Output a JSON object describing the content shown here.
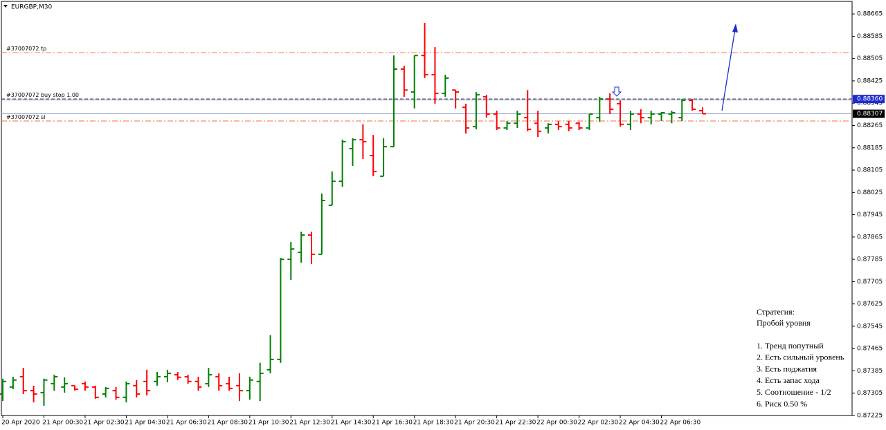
{
  "chart_data": {
    "type": "ohlc",
    "title": "EURGBP,M30",
    "categories": [
      "20 Apr 2020",
      null,
      null,
      null,
      "21 Apr 00:30",
      null,
      null,
      null,
      "21 Apr 02:30",
      null,
      null,
      null,
      "21 Apr 04:30",
      null,
      null,
      null,
      "21 Apr 06:30",
      null,
      null,
      null,
      "21 Apr 08:30",
      null,
      null,
      null,
      "21 Apr 10:30",
      null,
      null,
      null,
      "21 Apr 12:30",
      null,
      null,
      null,
      "21 Apr 14:30",
      null,
      null,
      null,
      "21 Apr 16:30",
      null,
      null,
      null,
      "21 Apr 18:30",
      null,
      null,
      null,
      "21 Apr 20:30",
      null,
      null,
      null,
      "21 Apr 22:30",
      null,
      null,
      null,
      "22 Apr 00:30",
      null,
      null,
      null,
      "22 Apr 02:30",
      null,
      null,
      null,
      "22 Apr 04:30",
      null,
      null,
      null,
      "22 Apr 06:30",
      null,
      null,
      null,
      null
    ],
    "open": [
      0.87302,
      0.87327,
      0.87364,
      0.87314,
      0.87307,
      0.87339,
      0.87327,
      0.87332,
      0.87339,
      0.87327,
      0.87302,
      0.87314,
      0.8729,
      0.87332,
      0.87347,
      0.87347,
      0.87364,
      0.87371,
      0.87364,
      0.87347,
      0.87339,
      0.87364,
      0.87339,
      0.87332,
      0.87314,
      0.87347,
      0.87389,
      0.87426,
      0.87785,
      0.8781,
      0.87872,
      0.87803,
      0.87979,
      0.88065,
      0.88182,
      0.88214,
      0.88157,
      0.88083,
      0.88189,
      0.88467,
      0.88385,
      0.88516,
      0.88447,
      0.8838,
      0.88392,
      0.8833,
      0.88261,
      0.88368,
      0.88306,
      0.88256,
      0.88273,
      0.88293,
      0.88273,
      0.88256,
      0.88269,
      0.88269,
      0.88273,
      0.88256,
      0.88293,
      0.8836,
      0.88343,
      0.88269,
      0.88306,
      0.88293,
      0.88306,
      0.88306,
      0.88293,
      0.88355,
      0.88318
    ],
    "high": [
      0.87357,
      0.87364,
      0.87396,
      0.87332,
      0.87357,
      0.87371,
      0.87362,
      0.87332,
      0.87347,
      0.87332,
      0.87327,
      0.87327,
      0.87347,
      0.87352,
      0.87389,
      0.87381,
      0.87389,
      0.87381,
      0.87371,
      0.87364,
      0.87396,
      0.87376,
      0.87364,
      0.87376,
      0.87364,
      0.87414,
      0.87513,
      0.8779,
      0.87847,
      0.87884,
      0.87884,
      0.88021,
      0.881,
      0.88214,
      0.88219,
      0.88269,
      0.88231,
      0.88219,
      0.88516,
      0.88479,
      0.88516,
      0.88633,
      0.88546,
      0.88447,
      0.88392,
      0.88343,
      0.88385,
      0.88375,
      0.88318,
      0.88281,
      0.88318,
      0.88392,
      0.88318,
      0.88273,
      0.88281,
      0.88281,
      0.88278,
      0.88306,
      0.88368,
      0.8838,
      0.88355,
      0.88318,
      0.88323,
      0.88318,
      0.88313,
      0.88318,
      0.8836,
      0.8836,
      0.8833
    ],
    "low": [
      0.87277,
      0.87319,
      0.87302,
      0.87272,
      0.8726,
      0.87314,
      0.87307,
      0.87314,
      0.87314,
      0.87285,
      0.8729,
      0.87282,
      0.87272,
      0.8729,
      0.87297,
      0.87332,
      0.87344,
      0.87352,
      0.87339,
      0.87314,
      0.87327,
      0.87314,
      0.87314,
      0.87277,
      0.87282,
      0.87277,
      0.87376,
      0.87414,
      0.87711,
      0.87773,
      0.87768,
      0.87803,
      0.87979,
      0.88045,
      0.8812,
      0.88145,
      0.88083,
      0.88083,
      0.88189,
      0.88368,
      0.88326,
      0.88435,
      0.88343,
      0.88368,
      0.88326,
      0.88236,
      0.88251,
      0.88293,
      0.88249,
      0.88249,
      0.88256,
      0.88244,
      0.88224,
      0.88236,
      0.88249,
      0.88244,
      0.88249,
      0.88249,
      0.88278,
      0.88306,
      0.88261,
      0.88249,
      0.88273,
      0.88269,
      0.88281,
      0.88273,
      0.88281,
      0.88318,
      0.88306
    ],
    "close": [
      0.87347,
      0.87352,
      0.87314,
      0.87302,
      0.87352,
      0.87364,
      0.87339,
      0.87319,
      0.87327,
      0.8729,
      0.87322,
      0.8729,
      0.87339,
      0.87302,
      0.87314,
      0.87364,
      0.87376,
      0.87362,
      0.87347,
      0.87327,
      0.87371,
      0.87332,
      0.87322,
      0.87314,
      0.87352,
      0.87376,
      0.87426,
      0.87785,
      0.87822,
      0.87872,
      0.87803,
      0.87996,
      0.88065,
      0.88207,
      0.88214,
      0.88207,
      0.881,
      0.88189,
      0.88467,
      0.88392,
      0.88516,
      0.88447,
      0.8838,
      0.88435,
      0.88385,
      0.88256,
      0.88375,
      0.88306,
      0.88256,
      0.88273,
      0.88306,
      0.88251,
      0.88244,
      0.88269,
      0.88261,
      0.88256,
      0.88256,
      0.88306,
      0.8836,
      0.88323,
      0.88269,
      0.88306,
      0.88293,
      0.88306,
      0.88311,
      0.88311,
      0.88355,
      0.88323,
      0.88307
    ],
    "up_color": "#008000",
    "down_color": "#ff0000",
    "ylim": [
      0.87225,
      0.8871
    ],
    "yticks": [
      0.88665,
      0.88585,
      0.88505,
      0.88425,
      0.88345,
      0.88265,
      0.88185,
      0.88105,
      0.88025,
      0.87945,
      0.87865,
      0.87785,
      0.87705,
      0.87625,
      0.87545,
      0.87465,
      0.87385,
      0.87305,
      0.87225
    ],
    "levels": [
      {
        "label": "#37007072 tp",
        "value": 0.88526,
        "color": "#ff6a3d"
      },
      {
        "label": "#37007072 buy stop 1.00",
        "value": 0.8836,
        "color": "#1a237e"
      },
      {
        "label": "#37007072 sl",
        "value": 0.88281,
        "color": "#ff6a3d"
      }
    ],
    "price_tags": [
      {
        "value": 0.8836,
        "label": "0.88360",
        "color": "#1c2bd1"
      },
      {
        "value": 0.88307,
        "label": "0.88307",
        "color": "#000000"
      }
    ],
    "annotations": {
      "title": "Стратегия:",
      "subtitle": "Пробой уровня",
      "items": [
        "1. Тренд попутный",
        "2. Есть сильный уровень",
        "3. Есть поджатия",
        "4. Есть запас хода",
        "5. Соотношение - 1/2",
        "6. Риск 0.50 %"
      ]
    }
  }
}
